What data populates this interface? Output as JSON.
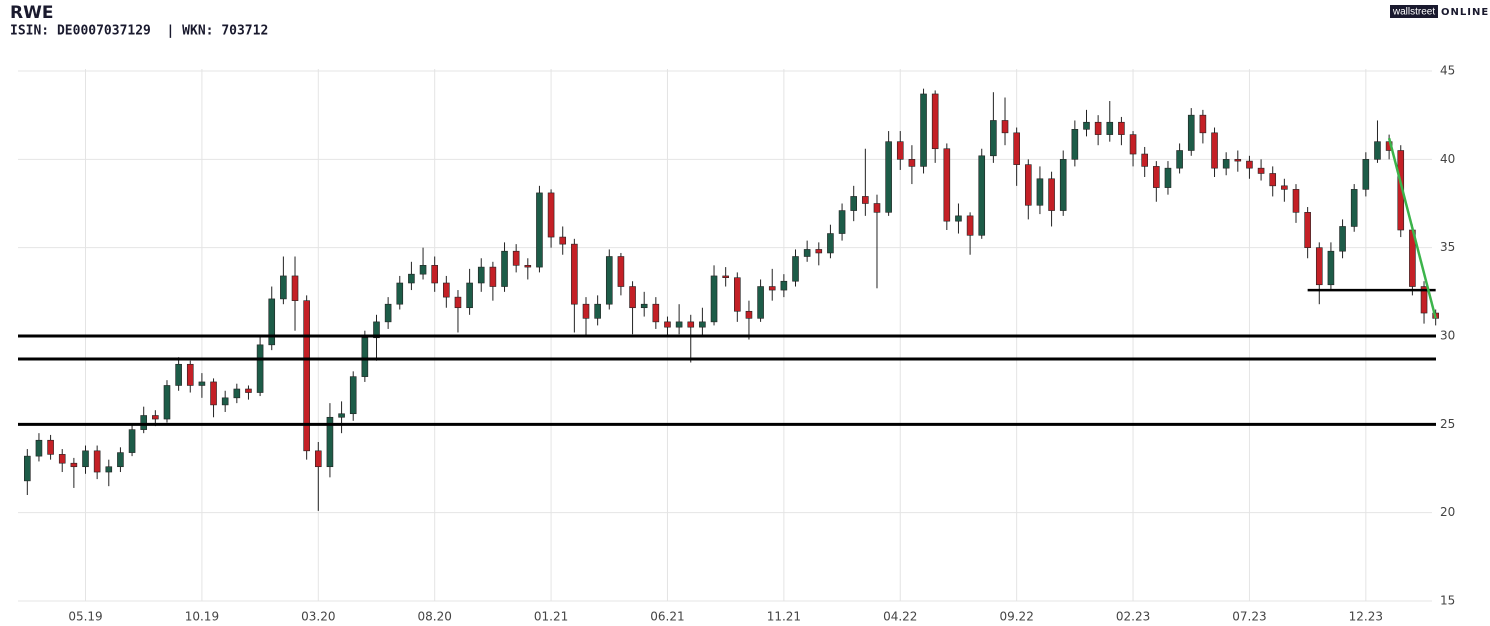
{
  "brand": {
    "left": "wallstreet",
    "right": "ONLINE"
  },
  "chart_data": {
    "type": "candlestick",
    "title": "RWE",
    "subtitle": "ISIN: DE0007037129  | WKN: 703712",
    "up_color": "#1d5c48",
    "down_color": "#c42026",
    "grid": true,
    "xlim": [
      -2.9,
      58.1
    ],
    "xticks": [
      {
        "value": 0,
        "label": "05.19"
      },
      {
        "value": 5,
        "label": "10.19"
      },
      {
        "value": 10,
        "label": "03.20"
      },
      {
        "value": 15,
        "label": "08.20"
      },
      {
        "value": 20,
        "label": "01.21"
      },
      {
        "value": 25,
        "label": "06.21"
      },
      {
        "value": 30,
        "label": "11.21"
      },
      {
        "value": 35,
        "label": "04.22"
      },
      {
        "value": 40,
        "label": "09.22"
      },
      {
        "value": 45,
        "label": "02.23"
      },
      {
        "value": 50,
        "label": "07.23"
      },
      {
        "value": 55,
        "label": "12.23"
      }
    ],
    "ylim": [
      15,
      45
    ],
    "yticks": [
      15,
      20,
      25,
      30,
      35,
      40,
      45
    ],
    "x": [
      -2.5,
      -2,
      -1.5,
      -1,
      -0.5,
      0,
      0.5,
      1,
      1.5,
      2,
      2.5,
      3,
      3.5,
      4,
      4.5,
      5,
      5.5,
      6,
      6.5,
      7,
      7.5,
      8,
      8.5,
      9,
      9.5,
      10,
      10.5,
      11,
      11.5,
      12,
      12.5,
      13,
      13.5,
      14,
      14.5,
      15,
      15.5,
      16,
      16.5,
      17,
      17.5,
      18,
      18.5,
      19,
      19.5,
      20,
      20.5,
      21,
      21.5,
      22,
      22.5,
      23,
      23.5,
      24,
      24.5,
      25,
      25.5,
      26,
      26.5,
      27,
      27.5,
      28,
      28.5,
      29,
      29.5,
      30,
      30.5,
      31,
      31.5,
      32,
      32.5,
      33,
      33.5,
      34,
      34.5,
      35,
      35.5,
      36,
      36.5,
      37,
      37.5,
      38,
      38.5,
      39,
      39.5,
      40,
      40.5,
      41,
      41.5,
      42,
      42.5,
      43,
      43.5,
      44,
      44.5,
      45,
      45.5,
      46,
      46.5,
      47,
      47.5,
      48,
      48.5,
      49,
      49.5,
      50,
      50.5,
      51,
      51.5,
      52,
      52.5,
      53,
      53.5,
      54,
      54.5,
      55,
      55.5,
      56,
      56.5,
      57,
      57.5,
      58
    ],
    "open": [
      21.8,
      23.2,
      24.1,
      23.3,
      22.8,
      22.6,
      23.5,
      22.3,
      22.6,
      23.4,
      24.7,
      25.5,
      25.3,
      27.2,
      28.4,
      27.2,
      27.4,
      26.1,
      26.5,
      27,
      26.8,
      29.5,
      32.1,
      33.4,
      32,
      23.5,
      22.6,
      25.4,
      25.6,
      27.7,
      29.9,
      30.8,
      31.8,
      33,
      33.5,
      34,
      33,
      32.2,
      31.6,
      33,
      33.9,
      32.8,
      34.8,
      34,
      33.9,
      38.1,
      35.6,
      35.2,
      31.8,
      31,
      31.8,
      34.5,
      32.8,
      31.6,
      31.8,
      30.8,
      30.5,
      30.8,
      30.5,
      30.8,
      33.4,
      33.3,
      31.4,
      31,
      32.8,
      32.6,
      33.1,
      34.5,
      34.9,
      34.7,
      35.8,
      37.1,
      37.9,
      37.5,
      37,
      41,
      40,
      39.6,
      43.7,
      40.6,
      36.5,
      36.8,
      35.7,
      40.2,
      42.2,
      41.5,
      39.7,
      37.4,
      38.9,
      37.1,
      40,
      41.7,
      42.1,
      41.4,
      42.1,
      41.4,
      40.3,
      39.6,
      38.4,
      39.5,
      40.5,
      42.5,
      41.5,
      39.5,
      40,
      39.9,
      39.5,
      39.2,
      38.5,
      38.3,
      37,
      35,
      32.9,
      34.8,
      36.2,
      38.3,
      40,
      41,
      40.5,
      36,
      32.8,
      31.3
    ],
    "high": [
      23.6,
      24.5,
      24.4,
      23.6,
      23.1,
      23.8,
      23.8,
      23.0,
      23.7,
      25.0,
      26.0,
      25.8,
      27.5,
      28.8,
      28.6,
      27.9,
      27.6,
      26.9,
      27.3,
      27.2,
      30.0,
      32.8,
      34.5,
      34.5,
      32.3,
      24.0,
      26.2,
      26.3,
      28.0,
      30.3,
      31.2,
      32.2,
      33.4,
      34.2,
      35.0,
      34.5,
      33.4,
      32.6,
      33.8,
      34.4,
      34.2,
      35.3,
      35.2,
      34.4,
      38.5,
      38.3,
      36.2,
      35.5,
      32.2,
      32.3,
      34.9,
      34.7,
      33.1,
      32.5,
      32.2,
      31.1,
      31.8,
      31.2,
      31.6,
      34.0,
      33.9,
      33.6,
      32.0,
      33.2,
      33.8,
      33.5,
      34.9,
      35.4,
      35.3,
      36.3,
      37.5,
      38.5,
      40.6,
      38.0,
      41.6,
      41.6,
      40.8,
      44.0,
      43.9,
      40.9,
      37.5,
      37.0,
      40.6,
      43.8,
      43.5,
      41.8,
      40.0,
      39.6,
      39.3,
      40.5,
      42.2,
      42.8,
      42.5,
      43.3,
      42.4,
      41.6,
      40.7,
      39.9,
      39.9,
      40.9,
      42.9,
      42.8,
      41.8,
      40.4,
      40.5,
      40.2,
      40.0,
      39.6,
      38.9,
      38.6,
      37.3,
      35.3,
      35.3,
      36.6,
      38.6,
      40.4,
      42.2,
      41.4,
      40.8,
      36.3,
      33.1,
      31.5
    ],
    "low": [
      21.0,
      22.9,
      23.0,
      22.3,
      21.4,
      22.2,
      21.9,
      21.5,
      22.3,
      23.2,
      24.5,
      24.9,
      25.1,
      26.9,
      26.8,
      26.5,
      25.4,
      25.7,
      26.2,
      26.4,
      26.6,
      29.2,
      31.8,
      30.3,
      23.0,
      20.1,
      22.0,
      24.5,
      25.2,
      27.4,
      28.6,
      30.4,
      31.5,
      32.6,
      33.2,
      32.5,
      31.6,
      30.2,
      31.2,
      32.5,
      32.0,
      32.5,
      33.6,
      33.2,
      33.6,
      35.0,
      34.6,
      30.2,
      30.0,
      30.6,
      31.5,
      32.3,
      30.1,
      31.1,
      30.4,
      30.0,
      30.1,
      28.5,
      30.0,
      30.6,
      32.8,
      30.8,
      29.8,
      30.8,
      32.0,
      32.2,
      32.8,
      34.2,
      34.0,
      34.4,
      35.4,
      36.5,
      36.8,
      32.7,
      36.8,
      39.4,
      38.6,
      39.2,
      39.8,
      36.0,
      35.8,
      34.6,
      35.5,
      39.8,
      40.8,
      38.5,
      36.6,
      36.9,
      36.2,
      36.8,
      39.6,
      41.3,
      40.8,
      41.0,
      40.8,
      39.6,
      39.0,
      37.6,
      38.0,
      39.2,
      40.2,
      40.9,
      39.0,
      39.1,
      39.3,
      38.9,
      38.8,
      37.9,
      37.6,
      36.4,
      34.4,
      31.8,
      32.6,
      34.4,
      35.9,
      37.9,
      39.8,
      40.0,
      35.6,
      32.3,
      30.7,
      30.6
    ],
    "close": [
      23.2,
      24.1,
      23.3,
      22.8,
      22.6,
      23.5,
      22.3,
      22.6,
      23.4,
      24.7,
      25.5,
      25.3,
      27.2,
      28.4,
      27.2,
      27.4,
      26.1,
      26.5,
      27,
      26.8,
      29.5,
      32.1,
      33.4,
      32,
      23.5,
      22.6,
      25.4,
      25.6,
      27.7,
      29.9,
      30.8,
      31.8,
      33,
      33.5,
      34,
      33,
      32.2,
      31.6,
      33,
      33.9,
      32.8,
      34.8,
      34,
      33.9,
      38.1,
      35.6,
      35.2,
      31.8,
      31,
      31.8,
      34.5,
      32.8,
      31.6,
      31.8,
      30.8,
      30.5,
      30.8,
      30.5,
      30.8,
      33.4,
      33.3,
      31.4,
      31,
      32.8,
      32.6,
      33.1,
      34.5,
      34.9,
      34.7,
      35.8,
      37.1,
      37.9,
      37.5,
      37,
      41,
      40,
      39.6,
      43.7,
      40.6,
      36.5,
      36.8,
      35.7,
      40.2,
      42.2,
      41.5,
      39.7,
      37.4,
      38.9,
      37.1,
      40,
      41.7,
      42.1,
      41.4,
      42.1,
      41.4,
      40.3,
      39.6,
      38.4,
      39.5,
      40.5,
      42.5,
      41.5,
      39.5,
      40,
      39.9,
      39.5,
      39.2,
      38.5,
      38.3,
      37,
      35,
      32.9,
      34.8,
      36.2,
      38.3,
      40,
      41,
      40.5,
      36,
      32.8,
      31.3,
      31
    ],
    "hlines": [
      {
        "y": 30,
        "color": "#000000"
      },
      {
        "y": 28.7,
        "color": "#000000"
      },
      {
        "y": 25,
        "color": "#000000"
      }
    ],
    "segments": [
      {
        "x": [
          52.5,
          58
        ],
        "y": [
          32.6,
          32.6
        ],
        "color": "#000000"
      },
      {
        "x": [
          56,
          58
        ],
        "y": [
          41.2,
          31
        ],
        "color": "#3cb44b"
      }
    ]
  }
}
